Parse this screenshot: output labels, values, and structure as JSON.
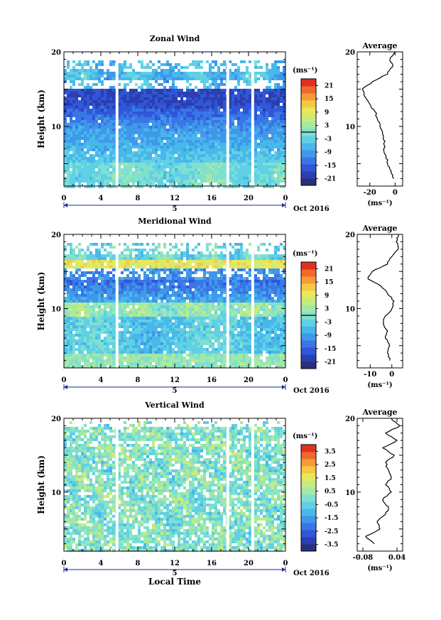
{
  "colorscale": [
    "#2a2f7a",
    "#2b3fb0",
    "#2f57d8",
    "#3a76e6",
    "#3f98ea",
    "#48b8ea",
    "#5fd0e6",
    "#7fe0cf",
    "#a4e8a6",
    "#c8ec7c",
    "#e8e85a",
    "#f7c843",
    "#f79a36",
    "#f06a2b",
    "#e0301f"
  ],
  "xaxis": {
    "ticks": [
      "0",
      "4",
      "8",
      "12",
      "16",
      "20",
      "0"
    ],
    "date_label": "5",
    "month_label": "Oct 2016",
    "label": "Local Time"
  },
  "chart_data": [
    {
      "type": "heatmap",
      "title": "Zonal Wind",
      "ylabel": "Height (km)",
      "yticks": [
        "20",
        "10"
      ],
      "ylim": [
        2,
        20
      ],
      "xlim": [
        0,
        24
      ],
      "colorbar": {
        "unit": "(ms⁻¹)",
        "ticks": [
          "21",
          "15",
          "9",
          "3",
          "-3",
          "-9",
          "-15",
          "-21"
        ],
        "range": [
          -24,
          24
        ]
      },
      "gaps": [
        [
          5.6,
          5.9
        ],
        [
          17.6,
          17.9
        ],
        [
          20.3,
          20.6
        ]
      ],
      "profile": {
        "title": "Average",
        "unit": "(ms⁻¹)",
        "xticks": [
          {
            "v": -20,
            "label": "-20"
          },
          {
            "v": 0,
            "label": "0"
          }
        ],
        "xlim": [
          -30,
          6
        ],
        "heights": [
          3,
          4,
          5,
          6,
          7,
          8,
          9,
          10,
          11,
          12,
          13,
          14,
          15,
          16,
          17,
          18,
          19,
          20
        ],
        "values": [
          -1,
          -3,
          -6,
          -7,
          -9,
          -8,
          -10,
          -12,
          -14,
          -16,
          -20,
          -24,
          -26,
          -18,
          -6,
          -2,
          -4,
          0
        ]
      }
    },
    {
      "type": "heatmap",
      "title": "Meridional Wind",
      "ylabel": "Height (km)",
      "yticks": [
        "20",
        "10"
      ],
      "ylim": [
        2,
        20
      ],
      "xlim": [
        0,
        24
      ],
      "colorbar": {
        "unit": "(ms⁻¹)",
        "ticks": [
          "21",
          "15",
          "9",
          "3",
          "-3",
          "-9",
          "-15",
          "-21"
        ],
        "range": [
          -24,
          24
        ]
      },
      "gaps": [
        [
          5.6,
          5.9
        ],
        [
          17.6,
          17.9
        ],
        [
          20.3,
          20.6
        ]
      ],
      "profile": {
        "title": "Average",
        "unit": "(ms⁻¹)",
        "xticks": [
          {
            "v": -10,
            "label": "-10"
          },
          {
            "v": 0,
            "label": "0"
          }
        ],
        "xlim": [
          -16,
          5
        ],
        "heights": [
          3,
          4,
          5,
          6,
          7,
          8,
          9,
          10,
          11,
          12,
          13,
          14,
          15,
          16,
          17,
          18,
          19,
          20
        ],
        "values": [
          -1,
          -2,
          -1,
          -3,
          -2,
          -4,
          -3,
          0,
          1,
          -2,
          -5,
          -11,
          -9,
          -2,
          0,
          3,
          2,
          3
        ]
      }
    },
    {
      "type": "heatmap",
      "title": "Vertical Wind",
      "ylabel": "Height (km)",
      "yticks": [
        "20",
        "10"
      ],
      "ylim": [
        2,
        20
      ],
      "xlim": [
        0,
        24
      ],
      "colorbar": {
        "unit": "(ms⁻¹)",
        "ticks": [
          "3.5",
          "2.5",
          "1.5",
          "0.5",
          "-0.5",
          "-1.5",
          "-2.5",
          "-3.5"
        ],
        "range": [
          -4,
          4
        ]
      },
      "gaps": [
        [
          5.6,
          5.9
        ],
        [
          17.6,
          17.9
        ],
        [
          20.3,
          20.6
        ]
      ],
      "profile": {
        "title": "Average",
        "unit": "(ms⁻¹)",
        "xticks": [
          {
            "v": -0.08,
            "label": "-0.08"
          },
          {
            "v": 0.04,
            "label": "0.04"
          }
        ],
        "xlim": [
          -0.1,
          0.06
        ],
        "heights": [
          3,
          4,
          5,
          6,
          7,
          8,
          9,
          10,
          11,
          12,
          13,
          14,
          15,
          16,
          17,
          18,
          19,
          20
        ],
        "values": [
          -0.04,
          -0.07,
          -0.02,
          -0.03,
          0.0,
          0.01,
          -0.01,
          0.02,
          0.0,
          0.02,
          0.01,
          0.0,
          0.03,
          -0.01,
          0.04,
          0.0,
          0.05,
          0.02
        ]
      }
    }
  ]
}
